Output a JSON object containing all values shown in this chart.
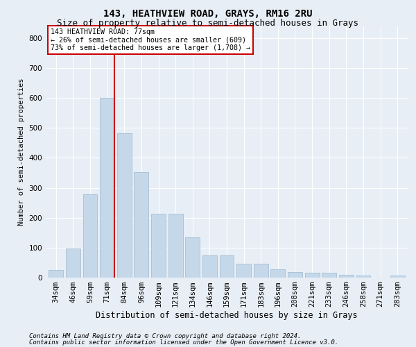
{
  "title1": "143, HEATHVIEW ROAD, GRAYS, RM16 2RU",
  "title2": "Size of property relative to semi-detached houses in Grays",
  "xlabel": "Distribution of semi-detached houses by size in Grays",
  "ylabel": "Number of semi-detached properties",
  "categories": [
    "34sqm",
    "46sqm",
    "59sqm",
    "71sqm",
    "84sqm",
    "96sqm",
    "109sqm",
    "121sqm",
    "134sqm",
    "146sqm",
    "159sqm",
    "171sqm",
    "183sqm",
    "196sqm",
    "208sqm",
    "221sqm",
    "233sqm",
    "246sqm",
    "258sqm",
    "271sqm",
    "283sqm"
  ],
  "values": [
    25,
    97,
    277,
    601,
    481,
    352,
    214,
    214,
    135,
    73,
    73,
    47,
    46,
    28,
    18,
    17,
    17,
    9,
    7,
    0,
    7
  ],
  "bar_color": "#c5d8ea",
  "bar_edge_color": "#9ab8d0",
  "line_color": "#cc0000",
  "line_x_index": 3,
  "annotation_text": "143 HEATHVIEW ROAD: 77sqm\n← 26% of semi-detached houses are smaller (609)\n73% of semi-detached houses are larger (1,708) →",
  "annotation_box_color": "#ffffff",
  "annotation_border_color": "#cc0000",
  "ylim": [
    0,
    840
  ],
  "yticks": [
    0,
    100,
    200,
    300,
    400,
    500,
    600,
    700,
    800
  ],
  "footer_line1": "Contains HM Land Registry data © Crown copyright and database right 2024.",
  "footer_line2": "Contains public sector information licensed under the Open Government Licence v3.0.",
  "background_color": "#e8eef5",
  "plot_bg_color": "#e8eef5",
  "grid_color": "#ffffff",
  "title1_fontsize": 10,
  "title2_fontsize": 9,
  "xlabel_fontsize": 8.5,
  "ylabel_fontsize": 7.5,
  "tick_fontsize": 7.5,
  "footer_fontsize": 6.5
}
